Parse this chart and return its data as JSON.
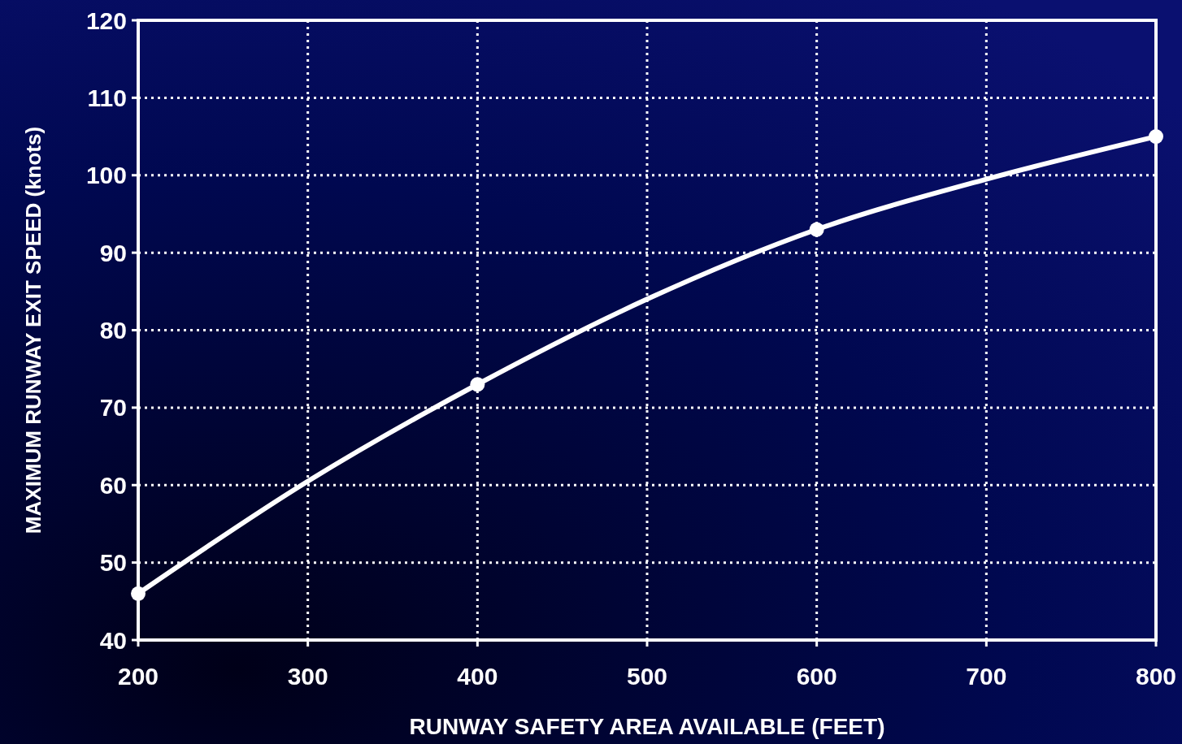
{
  "chart_data": {
    "type": "line",
    "xlabel": "RUNWAY SAFETY AREA AVAILABLE (FEET)",
    "ylabel": "MAXIMUM RUNWAY EXIT SPEED (knots)",
    "xlim": [
      200,
      800
    ],
    "xticks": [
      200,
      300,
      400,
      500,
      600,
      700,
      800
    ],
    "ylim": [
      40,
      120
    ],
    "yticks": [
      40,
      50,
      60,
      70,
      80,
      90,
      100,
      110,
      120
    ],
    "grid": true,
    "series": [
      {
        "color": "#ffffff",
        "marker": "none",
        "x": [
          200,
          300,
          400,
          500,
          600,
          700,
          800
        ],
        "values": [
          46,
          60.5,
          73,
          84,
          93,
          99.5,
          105
        ]
      },
      {
        "type": "scatter",
        "color": "#ffffff",
        "marker": "circle",
        "x": [
          200,
          400,
          600,
          800
        ],
        "values": [
          46,
          73,
          93,
          105
        ]
      }
    ]
  }
}
